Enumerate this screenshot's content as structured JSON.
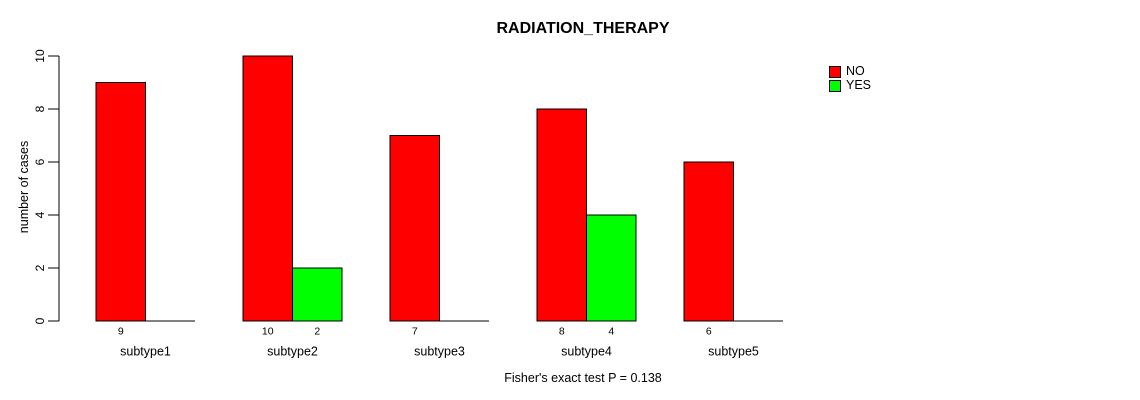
{
  "chart_data": {
    "type": "bar",
    "title": "RADIATION_THERAPY",
    "categories": [
      "subtype1",
      "subtype2",
      "subtype3",
      "subtype4",
      "subtype5"
    ],
    "series": [
      {
        "name": "NO",
        "color": "#ff0000",
        "values": [
          9,
          10,
          7,
          8,
          6
        ]
      },
      {
        "name": "YES",
        "color": "#00ff00",
        "values": [
          0,
          2,
          0,
          4,
          0
        ]
      }
    ],
    "xlabel": "",
    "ylabel": "number of cases",
    "ylim": [
      0,
      10
    ],
    "yticks": [
      0,
      2,
      4,
      6,
      8,
      10
    ],
    "value_labels": "shown under each nonzero bar",
    "annotation": "Fisher's exact test P = 0.138",
    "legend_position": "top-right",
    "grid": false,
    "background": "#ffffff",
    "axis_color": "#000000"
  }
}
